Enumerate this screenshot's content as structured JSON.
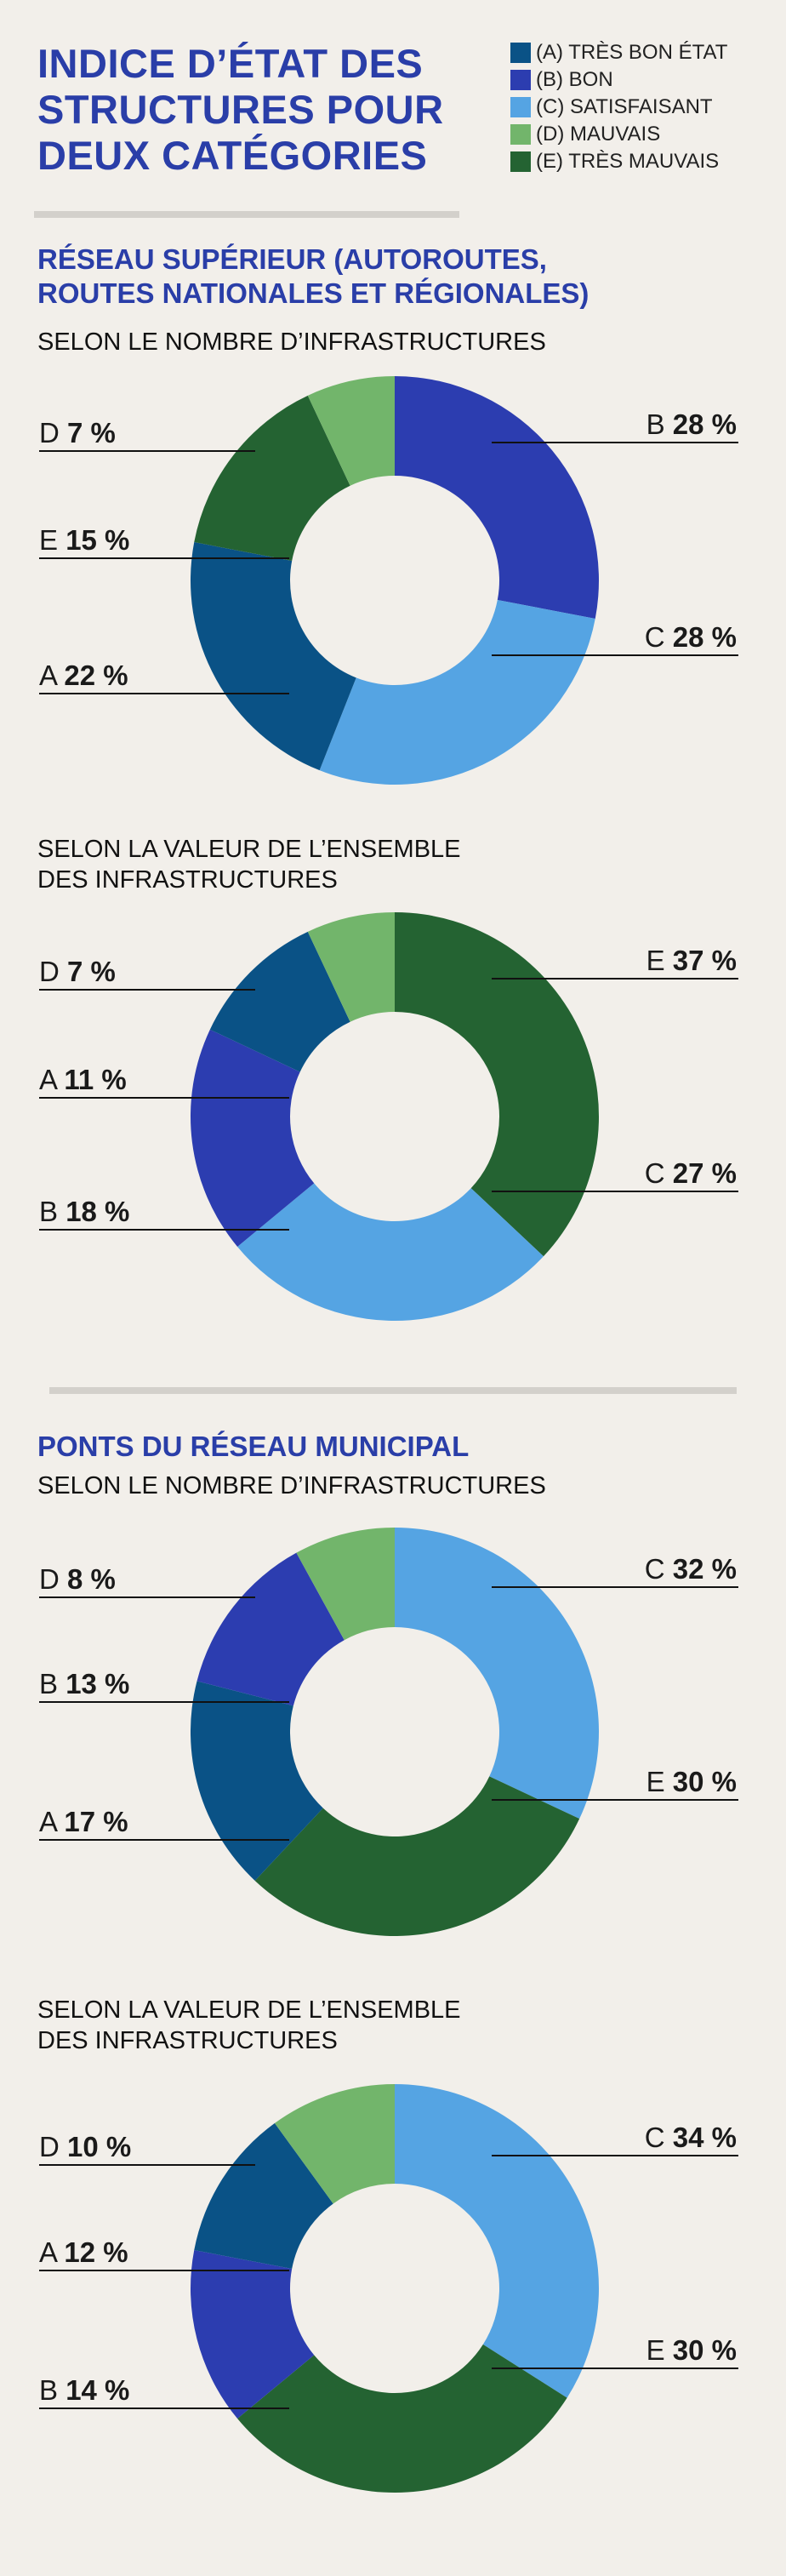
{
  "title_lines": [
    "INDICE D’ÉTAT DES",
    "STRUCTURES POUR",
    "DEUX CATÉGORIES"
  ],
  "legend": [
    {
      "key": "A",
      "label": "(A) TRÈS BON ÉTAT",
      "color": "#0a5286"
    },
    {
      "key": "B",
      "label": "(B) BON",
      "color": "#2c3db0"
    },
    {
      "key": "C",
      "label": "(C) SATISFAISANT",
      "color": "#55a4e3"
    },
    {
      "key": "D",
      "label": "(D) MAUVAIS",
      "color": "#72b56b"
    },
    {
      "key": "E",
      "label": "(E) TRÈS MAUVAIS",
      "color": "#246332"
    }
  ],
  "section1": {
    "title_lines": [
      "RÉSEAU SUPÉRIEUR (AUTOROUTES,",
      "ROUTES NATIONALES ET RÉGIONALES)"
    ],
    "sub_a": [
      "SELON LE NOMBRE D’INFRASTRUCTURES"
    ],
    "sub_b": [
      "SELON LA VALEUR DE L’ENSEMBLE",
      "DES INFRASTRUCTURES"
    ]
  },
  "section2": {
    "title_lines": [
      "PONTS DU RÉSEAU MUNICIPAL"
    ],
    "sub_a": [
      "SELON LE NOMBRE D’INFRASTRUCTURES"
    ],
    "sub_b": [
      "SELON LA VALEUR DE L’ENSEMBLE",
      "DES INFRASTRUCTURES"
    ]
  },
  "chart_data": [
    {
      "type": "pie",
      "title": "SELON LE NOMBRE D’INFRASTRUCTURES",
      "slices": [
        {
          "key": "B",
          "label": "B",
          "value": 28,
          "text": "28 %"
        },
        {
          "key": "C",
          "label": "C",
          "value": 28,
          "text": "28 %"
        },
        {
          "key": "A",
          "label": "A",
          "value": 22,
          "text": "22 %"
        },
        {
          "key": "E",
          "label": "E",
          "value": 15,
          "text": "15 %"
        },
        {
          "key": "D",
          "label": "D",
          "value": 7,
          "text": "7 %"
        }
      ]
    },
    {
      "type": "pie",
      "title": "SELON LA VALEUR DE L’ENSEMBLE DES INFRASTRUCTURES",
      "slices": [
        {
          "key": "E",
          "label": "E",
          "value": 37,
          "text": "37 %"
        },
        {
          "key": "C",
          "label": "C",
          "value": 27,
          "text": "27 %"
        },
        {
          "key": "B",
          "label": "B",
          "value": 18,
          "text": "18 %"
        },
        {
          "key": "A",
          "label": "A",
          "value": 11,
          "text": "11 %"
        },
        {
          "key": "D",
          "label": "D",
          "value": 7,
          "text": "7 %"
        }
      ]
    },
    {
      "type": "pie",
      "title": "SELON LE NOMBRE D’INFRASTRUCTURES",
      "slices": [
        {
          "key": "C",
          "label": "C",
          "value": 32,
          "text": "32 %"
        },
        {
          "key": "E",
          "label": "E",
          "value": 30,
          "text": "30 %"
        },
        {
          "key": "A",
          "label": "A",
          "value": 17,
          "text": "17 %"
        },
        {
          "key": "B",
          "label": "B",
          "value": 13,
          "text": "13 %"
        },
        {
          "key": "D",
          "label": "D",
          "value": 8,
          "text": "8 %"
        }
      ]
    },
    {
      "type": "pie",
      "title": "SELON LA VALEUR DE L’ENSEMBLE DES INFRASTRUCTURES",
      "slices": [
        {
          "key": "C",
          "label": "C",
          "value": 34,
          "text": "34 %"
        },
        {
          "key": "E",
          "label": "E",
          "value": 30,
          "text": "30 %"
        },
        {
          "key": "B",
          "label": "B",
          "value": 14,
          "text": "14 %"
        },
        {
          "key": "A",
          "label": "A",
          "value": 12,
          "text": "12 %"
        },
        {
          "key": "D",
          "label": "D",
          "value": 10,
          "text": "10 %"
        }
      ]
    }
  ]
}
